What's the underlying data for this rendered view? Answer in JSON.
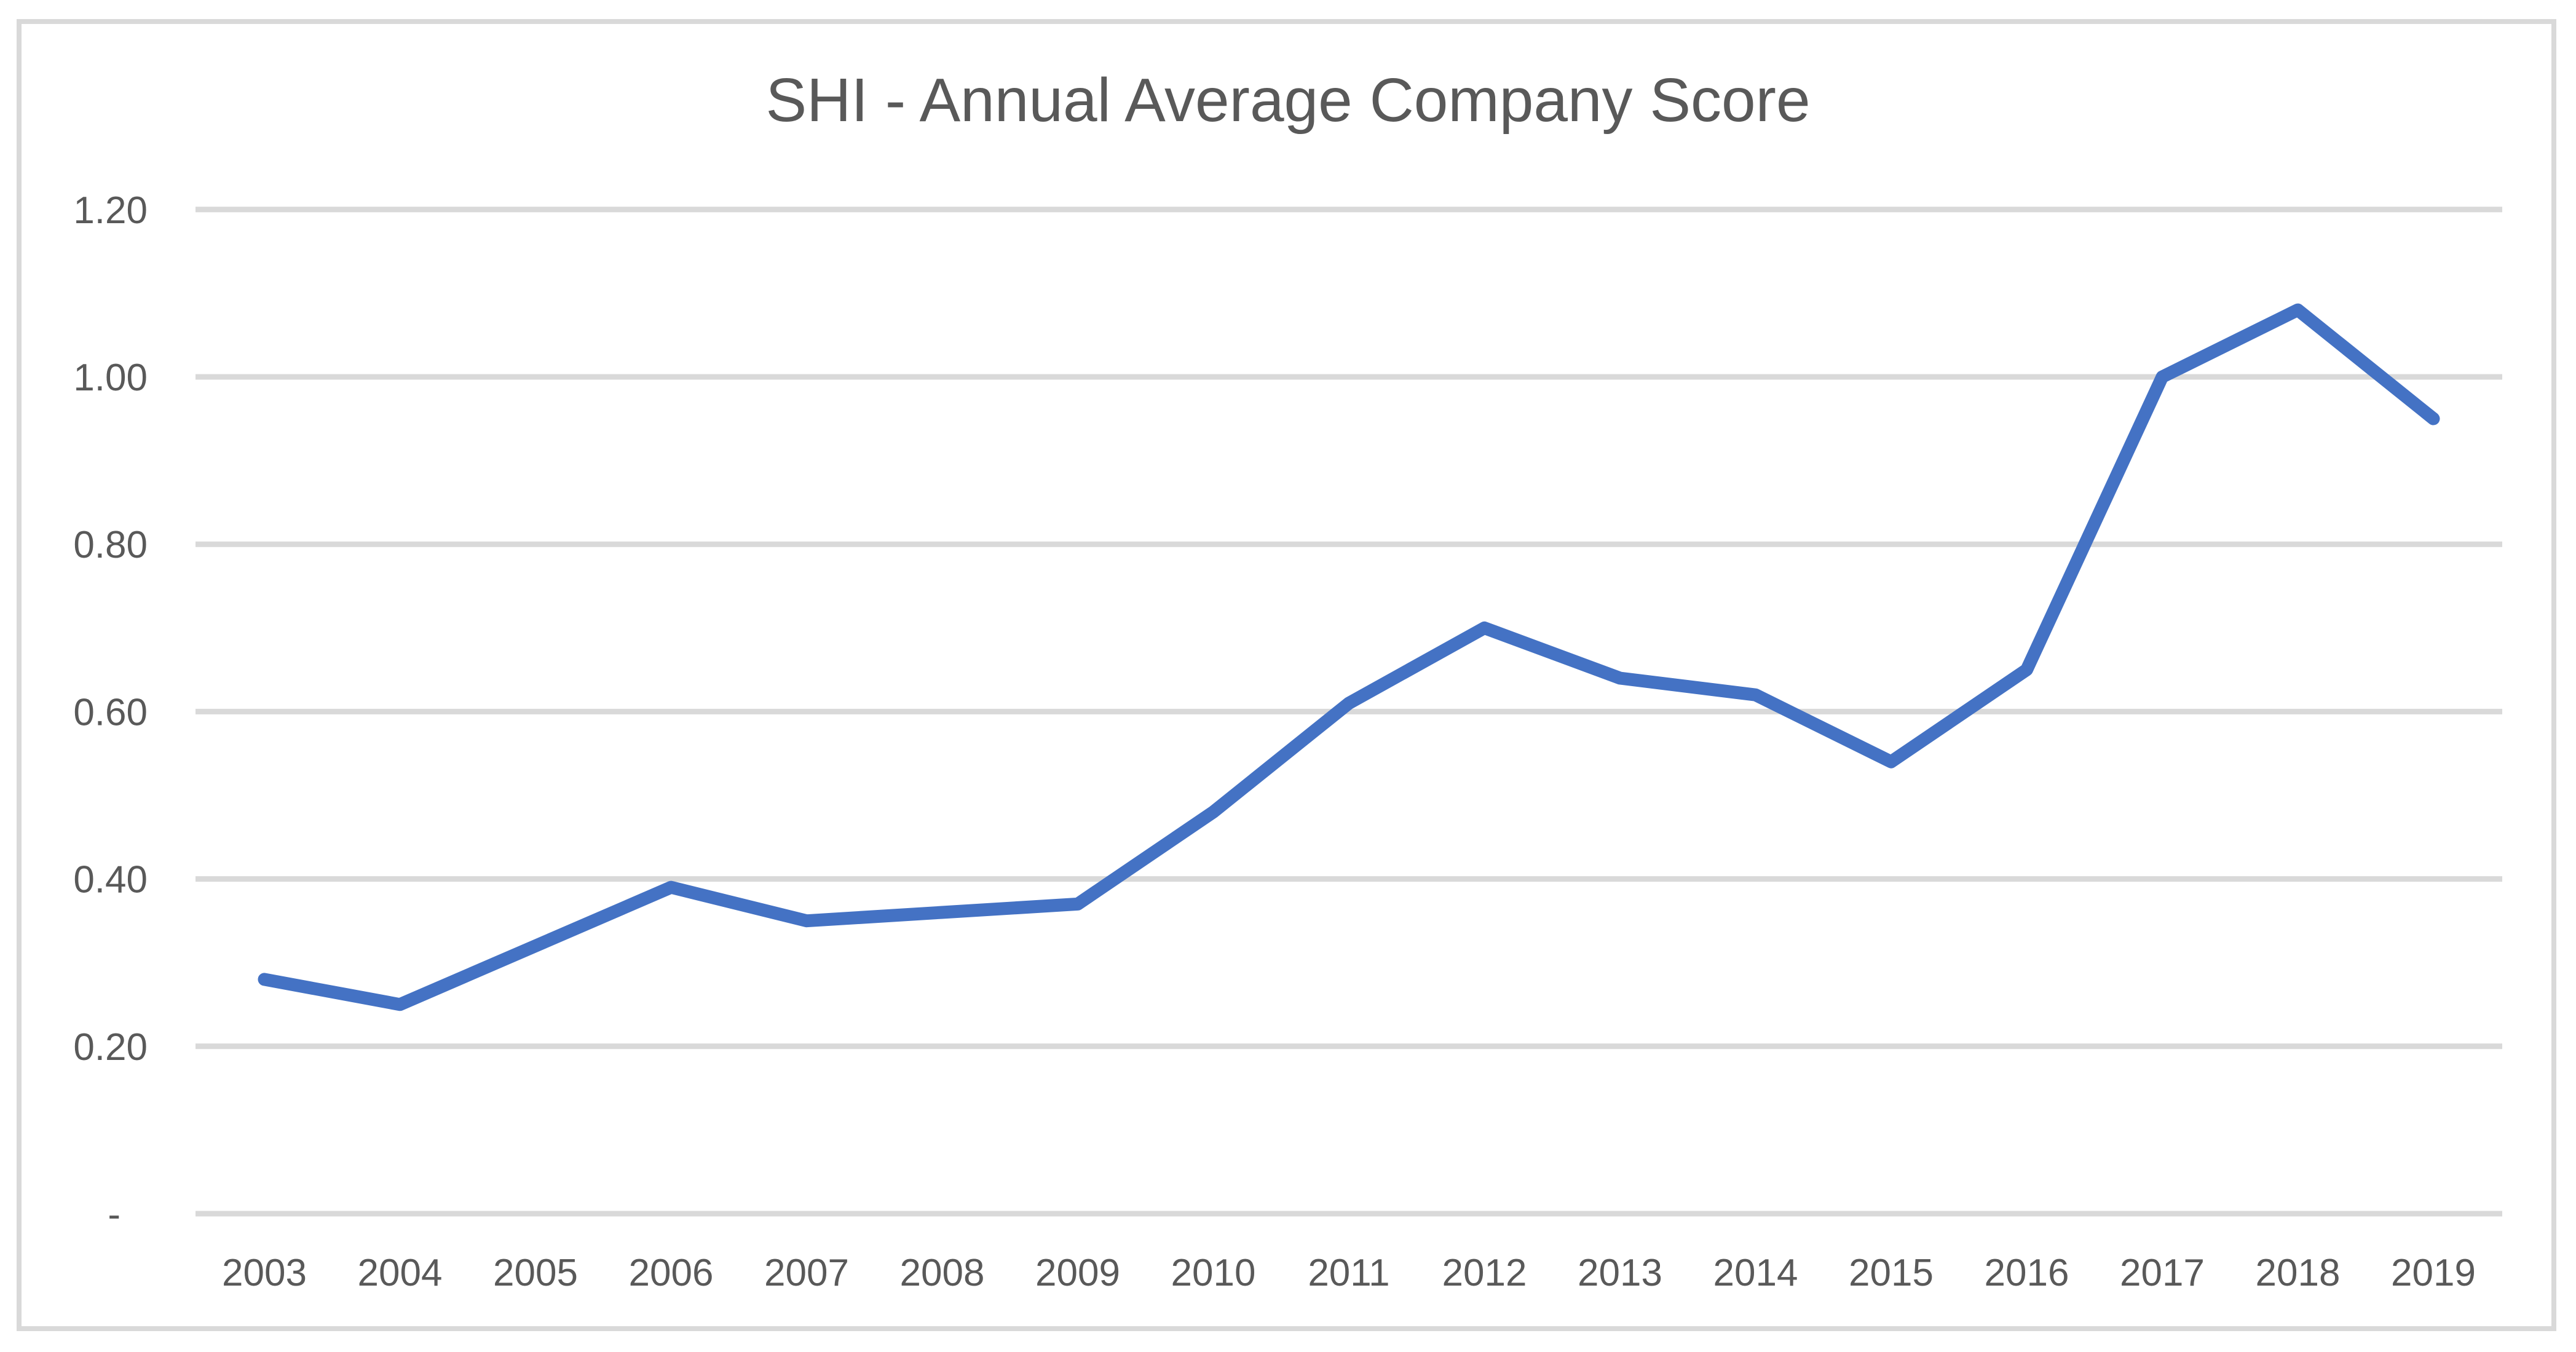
{
  "chart": {
    "title": "SHI - Annual Average Company Score"
  },
  "chart_data": {
    "type": "line",
    "title": "SHI - Annual Average Company Score",
    "categories": [
      "2003",
      "2004",
      "2005",
      "2006",
      "2007",
      "2008",
      "2009",
      "2010",
      "2011",
      "2012",
      "2013",
      "2014",
      "2015",
      "2016",
      "2017",
      "2018",
      "2019"
    ],
    "values": [
      0.28,
      0.25,
      0.32,
      0.39,
      0.35,
      0.36,
      0.37,
      0.48,
      0.61,
      0.7,
      0.64,
      0.62,
      0.54,
      0.65,
      1.0,
      1.08,
      0.95
    ],
    "xlabel": "",
    "ylabel": "",
    "ylim": [
      0,
      1.2
    ],
    "ytick_interval": 0.2,
    "ytick_labels": [
      "-",
      "0.20",
      "0.40",
      "0.60",
      "0.80",
      "1.00",
      "1.20"
    ],
    "grid": true,
    "legend": "none",
    "markers": false,
    "colors": {
      "line": "#4472C4",
      "gridline": "#D9D9D9",
      "axis_line": "#D9D9D9",
      "tick_label": "#595959",
      "title": "#595959",
      "border": "#D9D9D9",
      "background": "#FFFFFF"
    }
  }
}
